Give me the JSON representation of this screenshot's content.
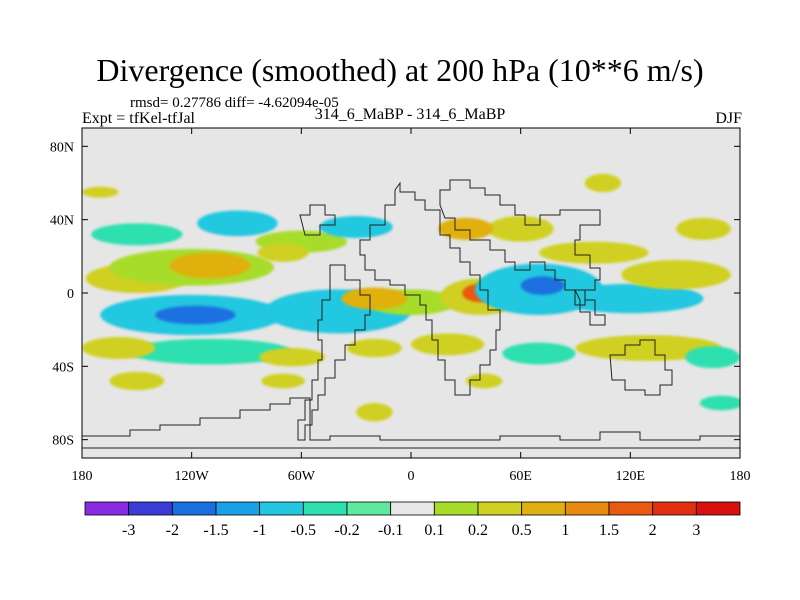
{
  "title": "Divergence (smoothed) at 200 hPa (10**6 m/s)",
  "stats": "rmsd= 0.27786 diff= -4.62094e-05",
  "left_label": "Expt = tfKel-tfJal",
  "center_label": "314_6_MaBP - 314_6_MaBP",
  "right_label": "DJF",
  "chart_data": {
    "type": "heatmap",
    "x_range": [
      -180,
      180
    ],
    "y_range": [
      -90,
      90
    ],
    "x_ticks": [
      {
        "value": -180,
        "label": "180"
      },
      {
        "value": -120,
        "label": "120W"
      },
      {
        "value": -60,
        "label": "60W"
      },
      {
        "value": 0,
        "label": "0"
      },
      {
        "value": 60,
        "label": "60E"
      },
      {
        "value": 120,
        "label": "120E"
      },
      {
        "value": 180,
        "label": "180"
      }
    ],
    "y_ticks": [
      {
        "value": 80,
        "label": "80N"
      },
      {
        "value": 40,
        "label": "40N"
      },
      {
        "value": 0,
        "label": "0"
      },
      {
        "value": -40,
        "label": "40S"
      },
      {
        "value": -80,
        "label": "80S"
      }
    ],
    "colorbar": {
      "labels": [
        "-3",
        "-2",
        "-1.5",
        "-1",
        "-0.5",
        "-0.2",
        "-0.1",
        "0.1",
        "0.2",
        "0.5",
        "1",
        "1.5",
        "2",
        "3"
      ],
      "colors": [
        "#8a2be2",
        "#3b3bd6",
        "#1a6fe0",
        "#1aa0e6",
        "#22c7e0",
        "#2ee0b0",
        "#5ee8a0",
        "#e8e8e8",
        "#a8dc2a",
        "#d0d020",
        "#e0b010",
        "#e88a10",
        "#e85a10",
        "#e03010",
        "#d81010"
      ]
    },
    "blobs": [
      {
        "lon": -150,
        "lat": 8,
        "rlon": 28,
        "rlat": 8,
        "level": 9
      },
      {
        "lon": -120,
        "lat": 14,
        "rlon": 45,
        "rlat": 10,
        "level": 8
      },
      {
        "lon": -110,
        "lat": 15,
        "rlon": 22,
        "rlat": 7,
        "level": 10
      },
      {
        "lon": -60,
        "lat": 28,
        "rlon": 25,
        "rlat": 6,
        "level": 8
      },
      {
        "lon": -70,
        "lat": 22,
        "rlon": 14,
        "rlat": 5,
        "level": 9
      },
      {
        "lon": -150,
        "lat": 32,
        "rlon": 25,
        "rlat": 6,
        "level": 5
      },
      {
        "lon": -95,
        "lat": 38,
        "rlon": 22,
        "rlat": 7,
        "level": 4
      },
      {
        "lon": -30,
        "lat": 36,
        "rlon": 20,
        "rlat": 6,
        "level": 4
      },
      {
        "lon": -120,
        "lat": -12,
        "rlon": 50,
        "rlat": 11,
        "level": 4
      },
      {
        "lon": -118,
        "lat": -12,
        "rlon": 22,
        "rlat": 5,
        "level": 2
      },
      {
        "lon": -40,
        "lat": -10,
        "rlon": 40,
        "rlat": 12,
        "level": 4
      },
      {
        "lon": 0,
        "lat": -5,
        "rlon": 25,
        "rlat": 7,
        "level": 8
      },
      {
        "lon": -20,
        "lat": -3,
        "rlon": 18,
        "rlat": 6,
        "level": 10
      },
      {
        "lon": 38,
        "lat": -2,
        "rlon": 22,
        "rlat": 10,
        "level": 9
      },
      {
        "lon": 38,
        "lat": 0,
        "rlon": 10,
        "rlat": 5,
        "level": 12
      },
      {
        "lon": 70,
        "lat": 2,
        "rlon": 35,
        "rlat": 14,
        "level": 4
      },
      {
        "lon": 72,
        "lat": 4,
        "rlon": 12,
        "rlat": 5,
        "level": 2
      },
      {
        "lon": 120,
        "lat": -3,
        "rlon": 40,
        "rlat": 8,
        "level": 4
      },
      {
        "lon": 145,
        "lat": 10,
        "rlon": 30,
        "rlat": 8,
        "level": 9
      },
      {
        "lon": 100,
        "lat": 22,
        "rlon": 30,
        "rlat": 6,
        "level": 9
      },
      {
        "lon": 60,
        "lat": 35,
        "rlon": 18,
        "rlat": 7,
        "level": 9
      },
      {
        "lon": 30,
        "lat": 35,
        "rlon": 15,
        "rlat": 6,
        "level": 10
      },
      {
        "lon": 160,
        "lat": 35,
        "rlon": 15,
        "rlat": 6,
        "level": 9
      },
      {
        "lon": 105,
        "lat": 60,
        "rlon": 10,
        "rlat": 5,
        "level": 9
      },
      {
        "lon": -110,
        "lat": -32,
        "rlon": 45,
        "rlat": 7,
        "level": 5
      },
      {
        "lon": -160,
        "lat": -30,
        "rlon": 20,
        "rlat": 6,
        "level": 9
      },
      {
        "lon": -65,
        "lat": -35,
        "rlon": 18,
        "rlat": 5,
        "level": 9
      },
      {
        "lon": -20,
        "lat": -30,
        "rlon": 15,
        "rlat": 5,
        "level": 9
      },
      {
        "lon": 20,
        "lat": -28,
        "rlon": 20,
        "rlat": 6,
        "level": 9
      },
      {
        "lon": 70,
        "lat": -33,
        "rlon": 20,
        "rlat": 6,
        "level": 5
      },
      {
        "lon": 130,
        "lat": -30,
        "rlon": 40,
        "rlat": 7,
        "level": 9
      },
      {
        "lon": 165,
        "lat": -35,
        "rlon": 15,
        "rlat": 6,
        "level": 5
      },
      {
        "lon": -150,
        "lat": -48,
        "rlon": 15,
        "rlat": 5,
        "level": 9
      },
      {
        "lon": -70,
        "lat": -48,
        "rlon": 12,
        "rlat": 4,
        "level": 9
      },
      {
        "lon": 40,
        "lat": -48,
        "rlon": 10,
        "rlat": 4,
        "level": 9
      },
      {
        "lon": -20,
        "lat": -65,
        "rlon": 10,
        "rlat": 5,
        "level": 9
      },
      {
        "lon": -170,
        "lat": 55,
        "rlon": 10,
        "rlat": 3,
        "level": 9
      },
      {
        "lon": 170,
        "lat": -60,
        "rlon": 12,
        "rlat": 4,
        "level": 5
      }
    ]
  }
}
